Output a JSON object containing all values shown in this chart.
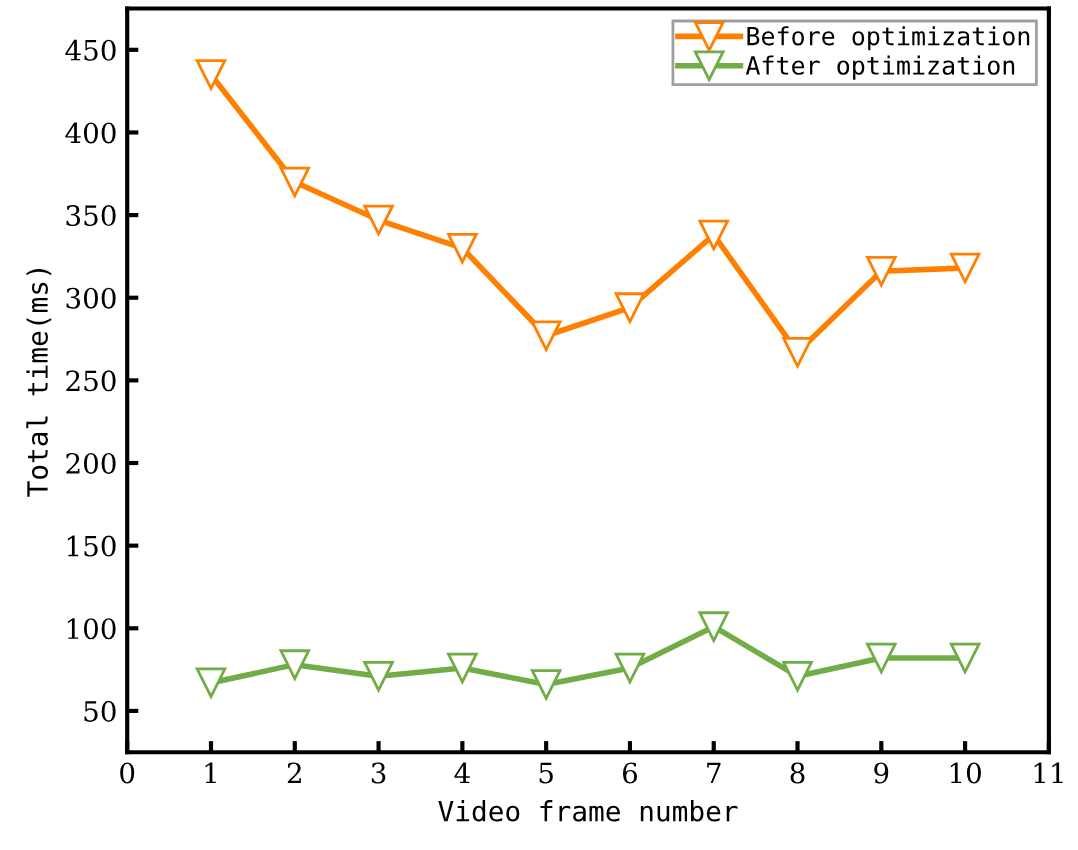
{
  "chart_data": {
    "type": "line",
    "xlabel": "Video frame number",
    "ylabel": "Total time(ms)",
    "x": [
      1,
      2,
      3,
      4,
      5,
      6,
      7,
      8,
      9,
      10
    ],
    "series": [
      {
        "name": "Before optimization",
        "color": "#ff8000",
        "values": [
          435,
          370,
          347,
          330,
          277,
          294,
          338,
          267,
          316,
          318
        ]
      },
      {
        "name": "After optimization",
        "color": "#70ad47",
        "values": [
          67,
          78,
          71,
          76,
          66,
          76,
          101,
          71,
          82,
          82
        ]
      }
    ],
    "xlim": [
      0,
      11
    ],
    "xticks": [
      0,
      1,
      2,
      3,
      4,
      5,
      6,
      7,
      8,
      9,
      10,
      11
    ],
    "ylim": [
      25,
      475
    ],
    "yticks": [
      50,
      100,
      150,
      200,
      250,
      300,
      350,
      400,
      450
    ],
    "marker": "triangle",
    "line_style": "solid",
    "legend": "top right",
    "grid": false
  }
}
